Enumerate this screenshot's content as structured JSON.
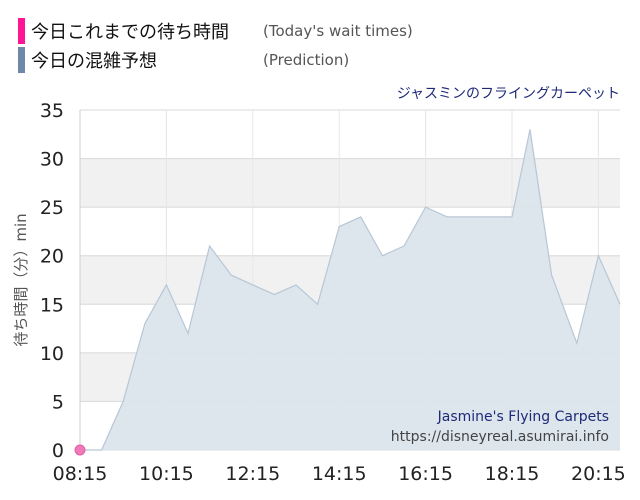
{
  "legend": [
    {
      "label_jp": "今日これまでの待ち時間",
      "label_en": "(Today's wait times)",
      "color": "#ff1493"
    },
    {
      "label_jp": "今日の混雑予想",
      "label_en": "(Prediction)",
      "color": "#6f88aa"
    }
  ],
  "chart_data": {
    "type": "area",
    "title": "ジャスミンのフライングカーペット",
    "ylabel": "待ち時間（分）min",
    "ylim": [
      0,
      35
    ],
    "yticks": [
      0,
      5,
      10,
      15,
      20,
      25,
      30,
      35
    ],
    "xticks": [
      "08:15",
      "10:15",
      "12:15",
      "14:15",
      "16:15",
      "18:15",
      "20:15"
    ],
    "grid": true,
    "series": [
      {
        "name": "今日の混雑予想",
        "color": "#dbe4ec",
        "stroke": "#b8c7d6",
        "points": [
          [
            "08:15",
            0
          ],
          [
            "08:45",
            0
          ],
          [
            "09:15",
            5
          ],
          [
            "09:45",
            13
          ],
          [
            "10:15",
            17
          ],
          [
            "10:45",
            12
          ],
          [
            "11:15",
            21
          ],
          [
            "11:45",
            18
          ],
          [
            "12:15",
            17
          ],
          [
            "12:45",
            16
          ],
          [
            "13:15",
            17
          ],
          [
            "13:45",
            15
          ],
          [
            "14:15",
            23
          ],
          [
            "14:45",
            24
          ],
          [
            "15:15",
            20
          ],
          [
            "15:45",
            21
          ],
          [
            "16:15",
            25
          ],
          [
            "16:45",
            24
          ],
          [
            "17:15",
            24
          ],
          [
            "17:45",
            24
          ],
          [
            "18:15",
            24
          ],
          [
            "18:40",
            33
          ],
          [
            "19:10",
            18
          ],
          [
            "19:45",
            11
          ],
          [
            "20:15",
            20
          ],
          [
            "20:45",
            15
          ]
        ]
      },
      {
        "name": "今日これまでの待ち時間",
        "color": "#f07ab8",
        "points": [
          [
            "08:15",
            0
          ]
        ]
      }
    ]
  },
  "watermark": {
    "title": "Jasmine's Flying Carpets",
    "url": "https://disneyreal.asumirai.info"
  }
}
